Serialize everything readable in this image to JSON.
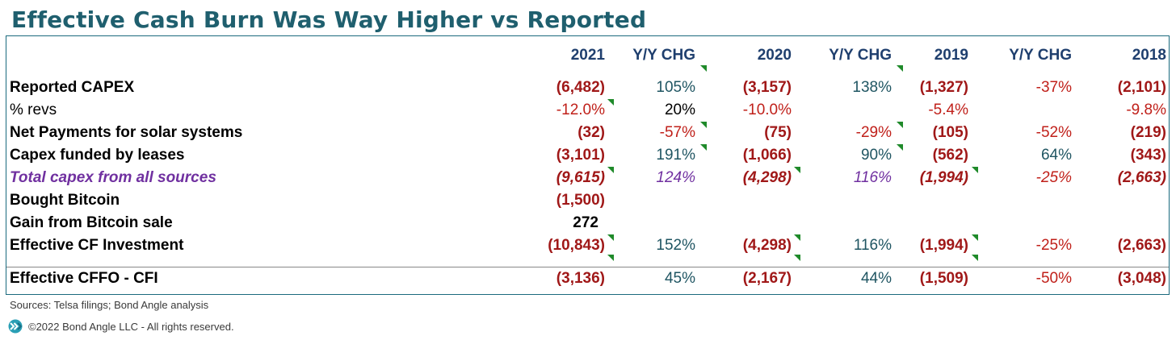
{
  "title": "Effective Cash Burn Was Way Higher vs Reported",
  "columns": [
    "2021",
    "Y/Y CHG",
    "2020",
    "Y/Y CHG",
    "2019",
    "Y/Y CHG",
    "2018"
  ],
  "rows": [
    {
      "label": "Reported CAPEX",
      "cells": [
        "(6,482)",
        "105%",
        "(3,157)",
        "138%",
        "(1,327)",
        "-37%",
        "(2,101)"
      ]
    },
    {
      "label": "% revs",
      "cells": [
        "-12.0%",
        "20%",
        "-10.0%",
        "",
        "-5.4%",
        "",
        "-9.8%"
      ]
    },
    {
      "label": "Net Payments for solar systems",
      "cells": [
        "(32)",
        "-57%",
        "(75)",
        "-29%",
        "(105)",
        "-52%",
        "(219)"
      ]
    },
    {
      "label": "Capex funded by leases",
      "cells": [
        "(3,101)",
        "191%",
        "(1,066)",
        "90%",
        "(562)",
        "64%",
        "(343)"
      ]
    },
    {
      "label": "Total capex from all sources",
      "cells": [
        "(9,615)",
        "124%",
        "(4,298)",
        "116%",
        "(1,994)",
        "-25%",
        "(2,663)"
      ]
    },
    {
      "label": "Bought Bitcoin",
      "cells": [
        "(1,500)",
        "",
        "",
        "",
        "",
        "",
        ""
      ]
    },
    {
      "label": "Gain from Bitcoin sale",
      "cells": [
        "272",
        "",
        "",
        "",
        "",
        "",
        ""
      ]
    },
    {
      "label": "Effective CF Investment",
      "cells": [
        "(10,843)",
        "152%",
        "(4,298)",
        "116%",
        "(1,994)",
        "-25%",
        "(2,663)"
      ]
    },
    {
      "label": "Effective CFFO - CFI",
      "cells": [
        "(3,136)",
        "45%",
        "(2,167)",
        "44%",
        "(1,509)",
        "-50%",
        "(3,048)"
      ]
    }
  ],
  "footer": {
    "sources": "Sources: Telsa filings; Bond Angle analysis",
    "copyright": "©2022 Bond Angle LLC - All rights reserved."
  },
  "colors": {
    "title": "#1f5f6e",
    "header": "#1f3f6e",
    "negative_value": "#a01818",
    "purple_row": "#7030a0",
    "border": "#1b6a7e",
    "comment_marker": "#1f8a2a"
  },
  "chart_data": {
    "type": "table",
    "title": "Effective Cash Burn Was Way Higher vs Reported",
    "columns": [
      "2021",
      "Y/Y CHG",
      "2020",
      "Y/Y CHG",
      "2019",
      "Y/Y CHG",
      "2018"
    ],
    "rows": [
      {
        "label": "Reported CAPEX",
        "values": [
          "(6,482)",
          "105%",
          "(3,157)",
          "138%",
          "(1,327)",
          "-37%",
          "(2,101)"
        ]
      },
      {
        "label": "% revs",
        "values": [
          "-12.0%",
          "20%",
          "-10.0%",
          "",
          "-5.4%",
          "",
          "-9.8%"
        ]
      },
      {
        "label": "Net Payments for solar systems",
        "values": [
          "(32)",
          "-57%",
          "(75)",
          "-29%",
          "(105)",
          "-52%",
          "(219)"
        ]
      },
      {
        "label": "Capex funded by leases",
        "values": [
          "(3,101)",
          "191%",
          "(1,066)",
          "90%",
          "(562)",
          "64%",
          "(343)"
        ]
      },
      {
        "label": "Total capex from all sources",
        "values": [
          "(9,615)",
          "124%",
          "(4,298)",
          "116%",
          "(1,994)",
          "-25%",
          "(2,663)"
        ]
      },
      {
        "label": "Bought Bitcoin",
        "values": [
          "(1,500)",
          "",
          "",
          "",
          "",
          "",
          ""
        ]
      },
      {
        "label": "Gain from Bitcoin sale",
        "values": [
          "272",
          "",
          "",
          "",
          "",
          "",
          ""
        ]
      },
      {
        "label": "Effective CF Investment",
        "values": [
          "(10,843)",
          "152%",
          "(4,298)",
          "116%",
          "(1,994)",
          "-25%",
          "(2,663)"
        ]
      },
      {
        "label": "Effective CFFO - CFI",
        "values": [
          "(3,136)",
          "45%",
          "(2,167)",
          "44%",
          "(1,509)",
          "-50%",
          "(3,048)"
        ]
      }
    ]
  }
}
